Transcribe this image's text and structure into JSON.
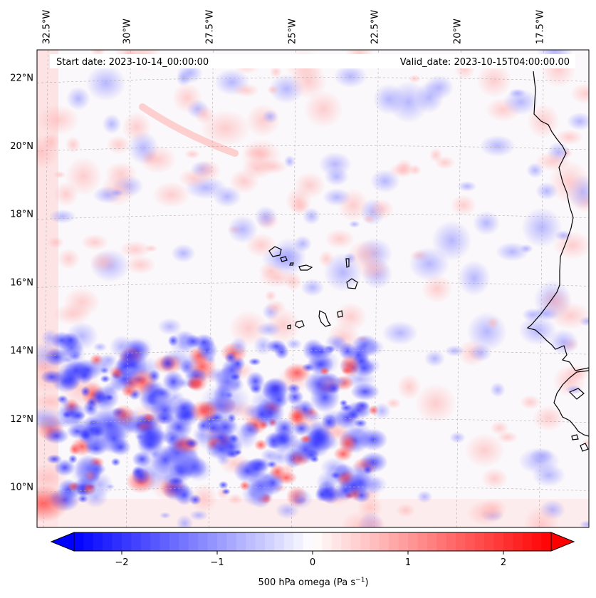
{
  "chart_data": {
    "type": "heatmap",
    "title": "",
    "header": {
      "start_date": "Start date: 2023-10-14_00:00:00",
      "valid_date": "Valid_date: 2023-10-15T04:00:00.00"
    },
    "longitude_ticks": [
      "32.5°W",
      "30°W",
      "27.5°W",
      "25°W",
      "22.5°W",
      "20°W",
      "17.5°W"
    ],
    "latitude_ticks": [
      "22°N",
      "20°N",
      "18°N",
      "16°N",
      "14°N",
      "12°N",
      "10°N"
    ],
    "lon_range": [
      -32.7,
      -16.0
    ],
    "lat_range": [
      8.8,
      22.8
    ],
    "grid": true,
    "colorbar": {
      "label": "500 hPa omega (Pa s",
      "label_exponent": "−1",
      "label_close": ")",
      "ticks": [
        "−2",
        "−1",
        "0",
        "1",
        "2"
      ],
      "tick_values": [
        -2,
        -1,
        0,
        1,
        2
      ],
      "vmin": -2.5,
      "vmax": 2.5,
      "colormap": "bwr",
      "extend": "both"
    },
    "field_description_regions": [
      {
        "name": "strong ascent cluster",
        "center": [
          -30.5,
          11.8
        ],
        "omega": -1.6
      },
      {
        "name": "ascent band",
        "center": [
          -27.0,
          12.5
        ],
        "omega": -0.9
      },
      {
        "name": "weak subsidence north",
        "center": [
          -27.0,
          20.5
        ],
        "omega": 0.4
      },
      {
        "name": "subsidence southwest corner",
        "center": [
          -32.5,
          9.5
        ],
        "omega": 1.6
      }
    ]
  },
  "colors": {
    "min": "#0000ff",
    "mid": "#ffffff",
    "max": "#ff0000",
    "coast": "#000000",
    "grid": "#b0b0b0"
  }
}
